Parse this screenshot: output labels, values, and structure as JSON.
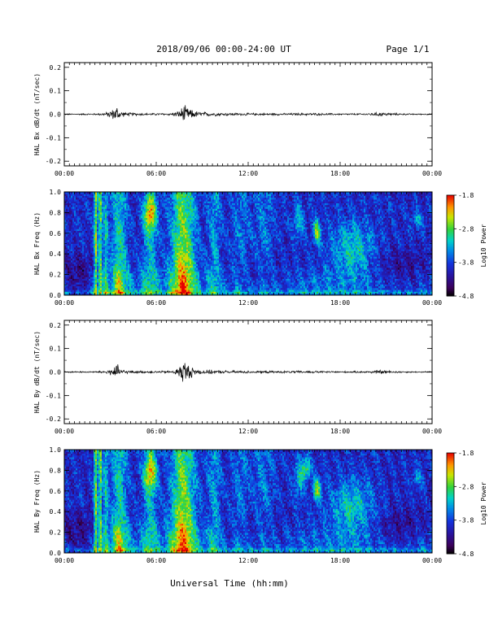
{
  "header": {
    "title": "2018/09/06  00:00-24:00 UT",
    "page": "Page 1/1"
  },
  "xaxis_label": "Universal Time (hh:mm)",
  "chart_data": [
    {
      "type": "line",
      "ylabel": "HAL Bx dB/dt (nT/sec)",
      "xlim": [
        0,
        24
      ],
      "ylim": [
        -0.22,
        0.22
      ],
      "xticks": [
        "00:00",
        "06:00",
        "12:00",
        "18:00",
        "00:00"
      ],
      "yticks": [
        "0.2",
        "0.1",
        "0.0",
        "-0.1",
        "-0.2"
      ],
      "ytick_values": [
        0.2,
        0.1,
        0.0,
        -0.1,
        -0.2
      ],
      "activity_envelope": {
        "x_hours": [
          0,
          2.2,
          2.8,
          3.0,
          3.3,
          3.45,
          3.6,
          4.0,
          5.5,
          7.0,
          7.4,
          7.6,
          7.8,
          8.2,
          8.8,
          10,
          12,
          14,
          16,
          18,
          19.5,
          20.6,
          21.3,
          22.5,
          24
        ],
        "amplitude": [
          0.003,
          0.004,
          0.01,
          0.02,
          0.03,
          0.045,
          0.02,
          0.008,
          0.005,
          0.006,
          0.015,
          0.03,
          0.045,
          0.025,
          0.012,
          0.008,
          0.006,
          0.005,
          0.006,
          0.004,
          0.004,
          0.01,
          0.006,
          0.003,
          0.003
        ]
      }
    },
    {
      "type": "heatmap",
      "ylabel": "HAL Bx Freq (Hz)",
      "xlim": [
        0,
        24
      ],
      "ylim": [
        0,
        1.0
      ],
      "xticks": [
        "00:00",
        "06:00",
        "12:00",
        "18:00",
        "00:00"
      ],
      "yticks": [
        "1.0",
        "0.8",
        "0.6",
        "0.4",
        "0.2",
        "0.0"
      ],
      "ytick_values": [
        1.0,
        0.8,
        0.6,
        0.4,
        0.2,
        0.0
      ],
      "colorbar": {
        "label": "Log10 Power",
        "ticks": [
          "-1.8",
          "-2.8",
          "-3.8",
          "-4.8"
        ],
        "range": [
          -4.8,
          -1.8
        ]
      }
    },
    {
      "type": "line",
      "ylabel": "HAL By dB/dt (nT/sec)",
      "xlim": [
        0,
        24
      ],
      "ylim": [
        -0.22,
        0.22
      ],
      "xticks": [
        "00:00",
        "06:00",
        "12:00",
        "18:00",
        "00:00"
      ],
      "yticks": [
        "0.2",
        "0.1",
        "0.0",
        "-0.1",
        "-0.2"
      ],
      "ytick_values": [
        0.2,
        0.1,
        0.0,
        -0.1,
        -0.2
      ],
      "activity_envelope": {
        "x_hours": [
          0,
          2.2,
          2.8,
          3.0,
          3.3,
          3.45,
          3.6,
          4.0,
          5.5,
          7.0,
          7.4,
          7.6,
          7.8,
          8.2,
          8.8,
          10,
          12,
          14,
          16,
          18,
          19.5,
          20.6,
          21.3,
          22.5,
          24
        ],
        "amplitude": [
          0.003,
          0.004,
          0.01,
          0.02,
          0.03,
          0.04,
          0.02,
          0.008,
          0.005,
          0.006,
          0.02,
          0.045,
          0.06,
          0.03,
          0.012,
          0.008,
          0.006,
          0.005,
          0.006,
          0.004,
          0.004,
          0.01,
          0.006,
          0.003,
          0.003
        ]
      }
    },
    {
      "type": "heatmap",
      "ylabel": "HAL By Freq (Hz)",
      "xlim": [
        0,
        24
      ],
      "ylim": [
        0,
        1.0
      ],
      "xticks": [
        "00:00",
        "06:00",
        "12:00",
        "18:00",
        "00:00"
      ],
      "yticks": [
        "1.0",
        "0.8",
        "0.6",
        "0.4",
        "0.2",
        "0.0"
      ],
      "ytick_values": [
        1.0,
        0.8,
        0.6,
        0.4,
        0.2,
        0.0
      ],
      "colorbar": {
        "label": "Log10 Power",
        "ticks": [
          "-1.8",
          "-2.8",
          "-3.8",
          "-4.8"
        ],
        "range": [
          -4.8,
          -1.8
        ]
      }
    }
  ]
}
